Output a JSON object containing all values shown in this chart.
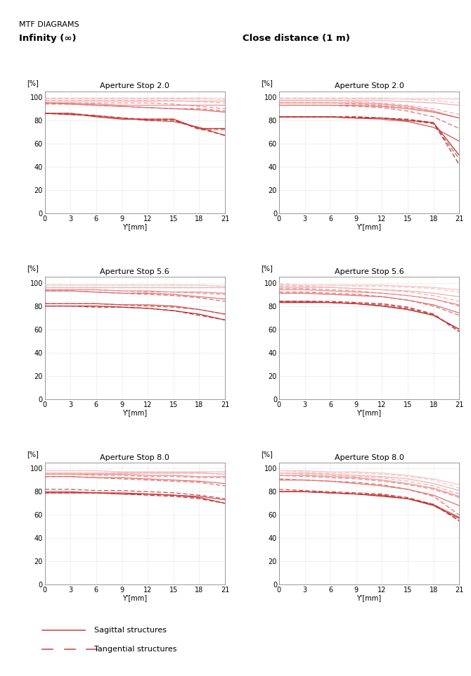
{
  "title": "MTF DIAGRAMS",
  "left_label": "Infinity (∞)",
  "right_label": "Close distance (1 m)",
  "aperture_stops": [
    "Aperture Stop 2.0",
    "Aperture Stop 5.6",
    "Aperture Stop 8.0"
  ],
  "x_ticks": [
    0,
    3,
    6,
    9,
    12,
    15,
    18,
    21
  ],
  "y_ticks": [
    0,
    20,
    40,
    60,
    80,
    100
  ],
  "xlabel_left": "Y'[mm]",
  "xlabel_right": "Y'[mm]",
  "ylabel": "[%]",
  "c1": "#e8a0a0",
  "c2": "#e08080",
  "c3": "#d06060",
  "c4": "#c04040",
  "c5": "#f0c0c0",
  "c6": "#e8b0b0",
  "grid_color": "#cccccc",
  "bg_color": "#ffffff",
  "inf_20": {
    "sag": [
      [
        0,
        3,
        6,
        9,
        12,
        15,
        18,
        21
      ],
      [
        99,
        99,
        99,
        99,
        99,
        99,
        99,
        99
      ],
      [
        97,
        97,
        97,
        97,
        97,
        97,
        97,
        97
      ],
      [
        95,
        95,
        94,
        93,
        93,
        93,
        93,
        93
      ],
      [
        95,
        94,
        93,
        92,
        91,
        90,
        89,
        87
      ],
      [
        86,
        85,
        84,
        82,
        80,
        79,
        74,
        67
      ],
      [
        86,
        86,
        83,
        81,
        81,
        81,
        73,
        73
      ]
    ],
    "tan": [
      [
        0,
        3,
        6,
        9,
        12,
        15,
        18,
        21
      ],
      [
        99,
        99,
        99,
        99,
        99,
        99,
        99,
        98
      ],
      [
        97,
        97,
        97,
        97,
        97,
        97,
        96,
        95
      ],
      [
        95,
        95,
        95,
        95,
        95,
        94,
        92,
        90
      ],
      [
        94,
        94,
        93,
        92,
        91,
        90,
        90,
        88
      ],
      [
        86,
        86,
        84,
        82,
        81,
        81,
        72,
        72
      ],
      [
        86,
        85,
        84,
        82,
        80,
        80,
        73,
        67
      ]
    ]
  },
  "inf_56": {
    "sag": [
      [
        0,
        3,
        6,
        9,
        12,
        15,
        18,
        21
      ],
      [
        98,
        98,
        98,
        98,
        98,
        98,
        98,
        97
      ],
      [
        96,
        96,
        96,
        96,
        96,
        96,
        96,
        96
      ],
      [
        94,
        94,
        94,
        93,
        93,
        92,
        92,
        91
      ],
      [
        93,
        93,
        92,
        91,
        91,
        90,
        88,
        86
      ],
      [
        82,
        82,
        82,
        81,
        81,
        80,
        77,
        73
      ],
      [
        80,
        80,
        80,
        79,
        78,
        76,
        73,
        68
      ]
    ],
    "tan": [
      [
        0,
        3,
        6,
        9,
        12,
        15,
        18,
        21
      ],
      [
        98,
        98,
        98,
        98,
        98,
        98,
        98,
        97
      ],
      [
        96,
        96,
        96,
        96,
        96,
        96,
        96,
        96
      ],
      [
        94,
        94,
        94,
        93,
        92,
        92,
        91,
        90
      ],
      [
        93,
        93,
        92,
        91,
        90,
        89,
        87,
        84
      ],
      [
        82,
        82,
        82,
        81,
        80,
        79,
        77,
        73
      ],
      [
        80,
        80,
        79,
        79,
        78,
        76,
        72,
        68
      ]
    ]
  },
  "inf_80": {
    "sag": [
      [
        0,
        3,
        6,
        9,
        12,
        15,
        18,
        21
      ],
      [
        98,
        98,
        98,
        97,
        97,
        97,
        97,
        97
      ],
      [
        96,
        96,
        96,
        96,
        96,
        96,
        96,
        95
      ],
      [
        95,
        95,
        95,
        95,
        94,
        94,
        93,
        93
      ],
      [
        93,
        93,
        92,
        92,
        91,
        90,
        89,
        87
      ],
      [
        80,
        80,
        79,
        79,
        78,
        77,
        76,
        73
      ],
      [
        79,
        79,
        79,
        78,
        78,
        77,
        75,
        70
      ]
    ],
    "tan": [
      [
        0,
        3,
        6,
        9,
        12,
        15,
        18,
        21
      ],
      [
        98,
        98,
        98,
        97,
        97,
        97,
        97,
        97
      ],
      [
        96,
        96,
        96,
        96,
        96,
        96,
        96,
        95
      ],
      [
        95,
        95,
        94,
        94,
        93,
        93,
        92,
        92
      ],
      [
        93,
        93,
        92,
        91,
        90,
        89,
        88,
        85
      ],
      [
        82,
        82,
        81,
        81,
        80,
        79,
        77,
        74
      ],
      [
        79,
        79,
        79,
        78,
        77,
        76,
        74,
        70
      ]
    ]
  },
  "cd_20": {
    "sag": [
      [
        0,
        3,
        6,
        9,
        12,
        15,
        18,
        21
      ],
      [
        99,
        99,
        99,
        99,
        99,
        99,
        99,
        99
      ],
      [
        97,
        97,
        97,
        97,
        97,
        96,
        95,
        93
      ],
      [
        95,
        95,
        95,
        95,
        94,
        92,
        88,
        82
      ],
      [
        93,
        93,
        93,
        93,
        92,
        90,
        87,
        82
      ],
      [
        83,
        83,
        83,
        82,
        81,
        79,
        74,
        62
      ],
      [
        83,
        83,
        83,
        82,
        82,
        80,
        78,
        50
      ]
    ],
    "tan": [
      [
        0,
        3,
        6,
        9,
        12,
        15,
        18,
        21
      ],
      [
        99,
        99,
        99,
        99,
        99,
        98,
        97,
        95
      ],
      [
        97,
        97,
        97,
        96,
        95,
        93,
        90,
        85
      ],
      [
        95,
        95,
        95,
        94,
        93,
        91,
        88,
        82
      ],
      [
        93,
        93,
        93,
        92,
        91,
        88,
        83,
        73
      ],
      [
        83,
        83,
        83,
        83,
        82,
        80,
        77,
        47
      ],
      [
        83,
        83,
        83,
        83,
        82,
        81,
        78,
        42
      ]
    ]
  },
  "cd_56": {
    "sag": [
      [
        0,
        3,
        6,
        9,
        12,
        15,
        18,
        21
      ],
      [
        98,
        98,
        98,
        98,
        98,
        97,
        96,
        94
      ],
      [
        96,
        96,
        96,
        95,
        94,
        93,
        91,
        88
      ],
      [
        94,
        94,
        93,
        92,
        91,
        89,
        86,
        81
      ],
      [
        91,
        91,
        90,
        89,
        88,
        85,
        81,
        74
      ],
      [
        84,
        84,
        83,
        82,
        80,
        77,
        72,
        60
      ],
      [
        83,
        83,
        83,
        82,
        80,
        77,
        72,
        60
      ]
    ],
    "tan": [
      [
        0,
        3,
        6,
        9,
        12,
        15,
        18,
        21
      ],
      [
        99,
        98,
        98,
        97,
        97,
        96,
        95,
        92
      ],
      [
        97,
        97,
        96,
        95,
        94,
        92,
        89,
        84
      ],
      [
        95,
        95,
        94,
        93,
        91,
        89,
        86,
        80
      ],
      [
        92,
        92,
        91,
        90,
        88,
        85,
        80,
        72
      ],
      [
        84,
        84,
        83,
        82,
        81,
        78,
        73,
        58
      ],
      [
        84,
        84,
        84,
        83,
        82,
        79,
        73,
        58
      ]
    ]
  },
  "cd_80": {
    "sag": [
      [
        0,
        3,
        6,
        9,
        12,
        15,
        18,
        21
      ],
      [
        98,
        98,
        97,
        97,
        96,
        94,
        91,
        86
      ],
      [
        96,
        96,
        95,
        94,
        93,
        91,
        87,
        81
      ],
      [
        94,
        94,
        93,
        92,
        90,
        87,
        83,
        76
      ],
      [
        90,
        90,
        89,
        87,
        85,
        82,
        77,
        68
      ],
      [
        80,
        80,
        79,
        78,
        77,
        74,
        69,
        58
      ],
      [
        80,
        80,
        79,
        78,
        76,
        74,
        68,
        57
      ]
    ],
    "tan": [
      [
        0,
        3,
        6,
        9,
        12,
        15,
        18,
        21
      ],
      [
        98,
        97,
        96,
        96,
        95,
        93,
        90,
        83
      ],
      [
        96,
        95,
        94,
        93,
        92,
        89,
        85,
        78
      ],
      [
        94,
        93,
        92,
        91,
        89,
        86,
        82,
        75
      ],
      [
        91,
        90,
        89,
        88,
        86,
        82,
        76,
        60
      ],
      [
        82,
        81,
        80,
        79,
        78,
        75,
        69,
        55
      ],
      [
        80,
        80,
        79,
        78,
        77,
        74,
        69,
        55
      ]
    ]
  }
}
